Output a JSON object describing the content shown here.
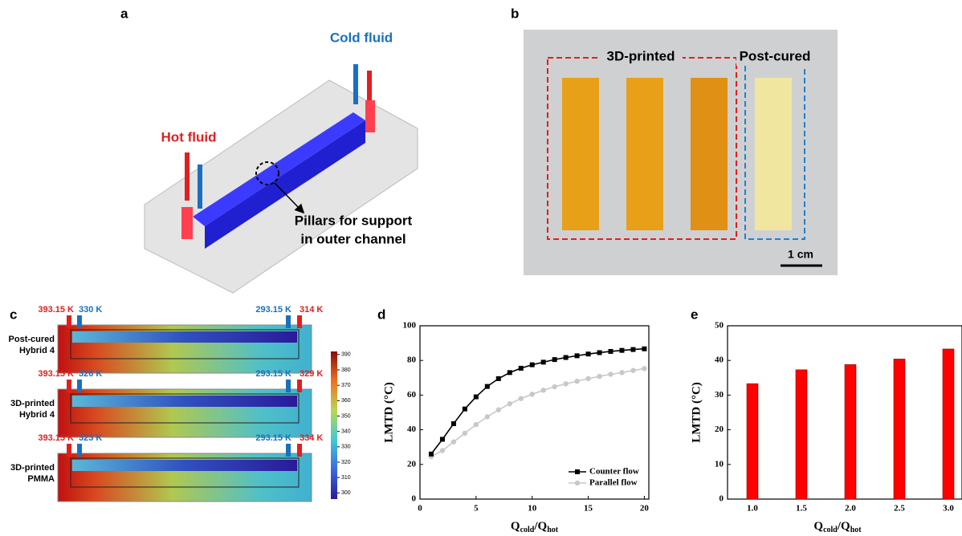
{
  "panel_a": {
    "label": "a",
    "cold": "Cold fluid",
    "hot": "Hot fluid",
    "note": [
      "Pillars for support",
      "in outer channel"
    ]
  },
  "panel_b": {
    "label": "b",
    "group1": "3D-printed",
    "group2": "Post-cured",
    "scale": "1 cm"
  },
  "panel_c": {
    "label": "c",
    "rows": [
      {
        "name": [
          "Post-cured",
          "Hybrid 4"
        ],
        "t_hot_in": "393.15 K",
        "t_cold_out": "330 K",
        "t_cold_in": "293.15 K",
        "t_hot_out": "314 K"
      },
      {
        "name": [
          "3D-printed",
          "Hybrid 4"
        ],
        "t_hot_in": "393.15 K",
        "t_cold_out": "326 K",
        "t_cold_in": "293.15 K",
        "t_hot_out": "329 K"
      },
      {
        "name": [
          "3D-printed",
          "PMMA"
        ],
        "t_hot_in": "393.15 K",
        "t_cold_out": "323 K",
        "t_cold_in": "293.15 K",
        "t_hot_out": "334 K"
      }
    ],
    "colorbar_lim": [
      296,
      392
    ],
    "colorbar_ticks": [
      300,
      310,
      320,
      330,
      340,
      350,
      360,
      370,
      380,
      390
    ]
  },
  "chart_data": [
    {
      "type": "line",
      "panel": "d",
      "ylabel": "LMTD (°C)",
      "xlabel": [
        "Q",
        "cold",
        "/Q",
        "hot"
      ],
      "x": [
        1,
        2,
        3,
        4,
        5,
        6,
        7,
        8,
        9,
        10,
        11,
        12,
        13,
        14,
        15,
        16,
        17,
        18,
        19,
        20
      ],
      "series": [
        {
          "name": "Counter flow",
          "color": "#000000",
          "marker": "square",
          "values": [
            26,
            34.5,
            43.5,
            52,
            59,
            65,
            69.5,
            73,
            75.5,
            77.5,
            79,
            80.5,
            81.7,
            82.7,
            83.7,
            84.5,
            85.2,
            85.8,
            86.3,
            86.7
          ]
        },
        {
          "name": "Parallel flow",
          "color": "#c8c8c8",
          "marker": "circle",
          "values": [
            24.5,
            28,
            33,
            38,
            43,
            47.5,
            51.5,
            55,
            58,
            60.5,
            62.8,
            64.8,
            66.5,
            68,
            69.5,
            70.8,
            72,
            73,
            74.2,
            75.3
          ]
        }
      ],
      "xlim": [
        0,
        20.4
      ],
      "xticks": [
        0,
        5,
        10,
        15,
        20
      ],
      "ylim": [
        0,
        100
      ],
      "yticks": [
        0,
        20,
        40,
        60,
        80,
        100
      ],
      "legend": "lower right"
    },
    {
      "type": "bar",
      "panel": "e",
      "ylabel": "LMTD (°C)",
      "xlabel": [
        "Q",
        "cold",
        "/Q",
        "hot"
      ],
      "categories": [
        "1.0",
        "1.5",
        "2.0",
        "2.5",
        "3.0"
      ],
      "values": [
        33.3,
        37.3,
        38.8,
        40.4,
        43.3
      ],
      "color": "#ff0000",
      "ylim": [
        0,
        50
      ],
      "yticks": [
        0,
        10,
        20,
        30,
        40,
        50
      ]
    }
  ]
}
